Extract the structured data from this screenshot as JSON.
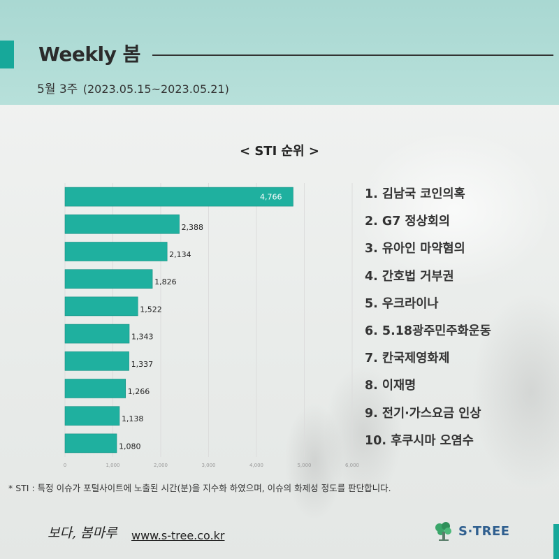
{
  "header": {
    "title": "Weekly 봄",
    "week": "5월 3주",
    "period": "(2023.05.15~2023.05.21)"
  },
  "chart_data": {
    "type": "bar",
    "orientation": "horizontal",
    "title": "< STI 순위 >",
    "categories": [
      "1. 김남국 코인의혹",
      "2. G7 정상회의",
      "3. 유아인 마약혐의",
      "4. 간호법 거부권",
      "5. 우크라이나",
      "6. 5.18광주민주화운동",
      "7. 칸국제영화제",
      "8. 이재명",
      "9. 전기·가스요금 인상",
      "10. 후쿠시마 오염수"
    ],
    "values": [
      4766,
      2388,
      2134,
      1826,
      1522,
      1343,
      1337,
      1266,
      1138,
      1080
    ],
    "value_labels": [
      "4,766",
      "2,388",
      "2,134",
      "1,826",
      "1,522",
      "1,343",
      "1,337",
      "1,266",
      "1,138",
      "1,080"
    ],
    "xlim": [
      0,
      6000
    ],
    "xticks": [
      0,
      1000,
      2000,
      3000,
      4000,
      5000,
      6000
    ],
    "xtick_labels": [
      "0",
      "1,000",
      "2,000",
      "3,000",
      "4,000",
      "5,000",
      "6,000"
    ],
    "grid": true,
    "legend_position": "right",
    "bar_color": "#1fb09f"
  },
  "footnote": "* STI : 특정 이슈가 포털사이트에 노출된 시간(분)을 지수화 하였으며, 이슈의 화제성 정도를 판단합니다.",
  "footer": {
    "brand": "보다, 봄마루",
    "website": "www.s-tree.co.kr",
    "logo_text": "S·TREE"
  },
  "colors": {
    "accent": "#17a89a",
    "header_bg": "#b2ddd7",
    "logo_blue": "#2f5f8f"
  }
}
